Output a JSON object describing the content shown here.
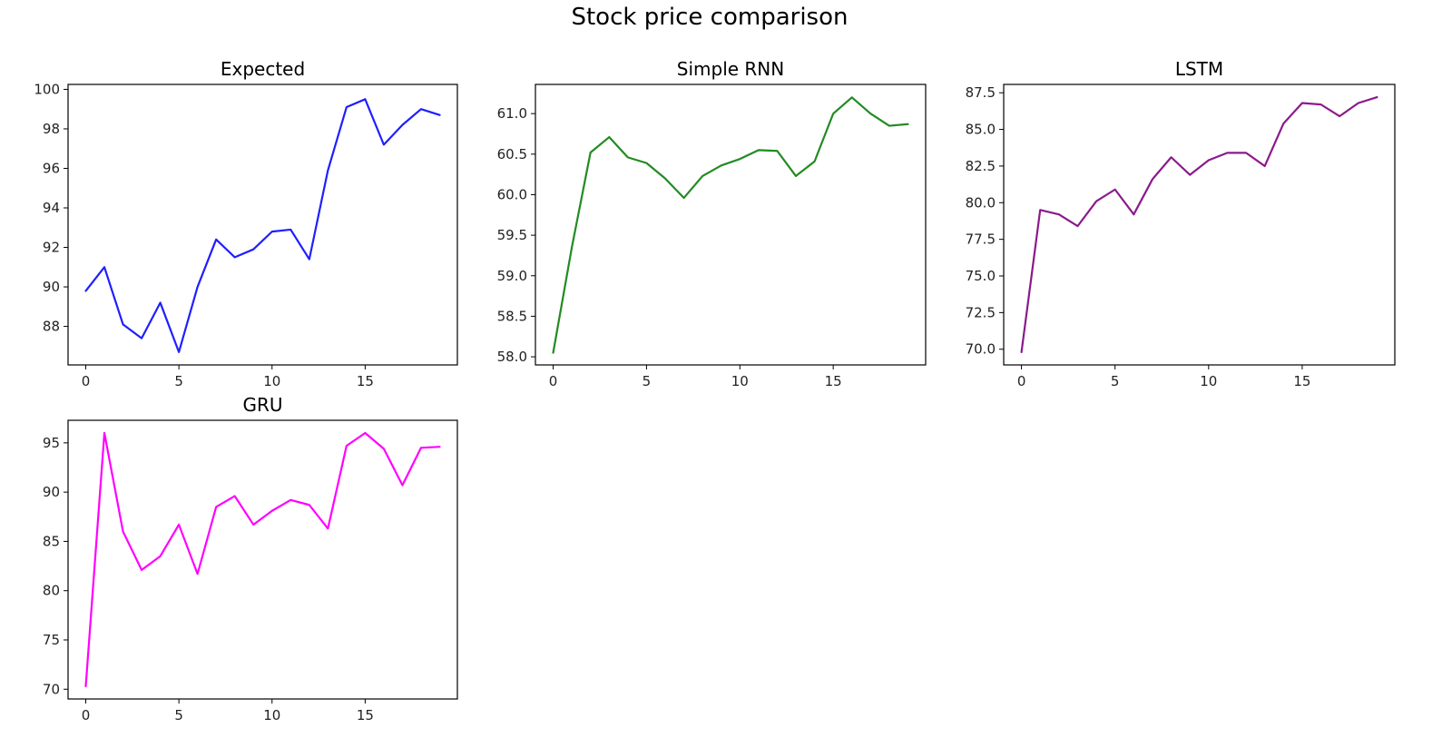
{
  "figure": {
    "title": "Stock price comparison"
  },
  "chart_data": [
    {
      "type": "line",
      "title": "Expected",
      "color": "#1f1fff",
      "x": [
        0,
        1,
        2,
        3,
        4,
        5,
        6,
        7,
        8,
        9,
        10,
        11,
        12,
        13,
        14,
        15,
        16,
        17,
        18,
        19
      ],
      "values": [
        89.8,
        91.0,
        88.1,
        87.4,
        89.2,
        86.7,
        90.0,
        92.4,
        91.5,
        91.9,
        92.8,
        92.9,
        91.4,
        95.9,
        99.1,
        99.5,
        97.2,
        98.2,
        99.0,
        98.7
      ],
      "xlim": [
        -0.95,
        19.95
      ],
      "ylim": [
        86.05,
        100.25
      ],
      "xticks": [
        0,
        5,
        10,
        15
      ],
      "yticks": [
        88,
        90,
        92,
        94,
        96,
        98,
        100
      ],
      "ytick_decimals": 0,
      "grid": false
    },
    {
      "type": "line",
      "title": "Simple RNN",
      "color": "#228b22",
      "x": [
        0,
        1,
        2,
        3,
        4,
        5,
        6,
        7,
        8,
        9,
        10,
        11,
        12,
        13,
        14,
        15,
        16,
        17,
        18,
        19
      ],
      "values": [
        58.05,
        59.35,
        60.52,
        60.71,
        60.46,
        60.39,
        60.2,
        59.96,
        60.23,
        60.36,
        60.44,
        60.55,
        60.54,
        60.23,
        60.41,
        61.0,
        61.2,
        61.0,
        60.85,
        60.87
      ],
      "xlim": [
        -0.95,
        19.95
      ],
      "ylim": [
        57.9,
        61.36
      ],
      "xticks": [
        0,
        5,
        10,
        15
      ],
      "yticks": [
        58.0,
        58.5,
        59.0,
        59.5,
        60.0,
        60.5,
        61.0
      ],
      "ytick_decimals": 1,
      "grid": false
    },
    {
      "type": "line",
      "title": "LSTM",
      "color": "#8b1a8b",
      "x": [
        0,
        1,
        2,
        3,
        4,
        5,
        6,
        7,
        8,
        9,
        10,
        11,
        12,
        13,
        14,
        15,
        16,
        17,
        18,
        19
      ],
      "values": [
        69.8,
        79.5,
        79.2,
        78.4,
        80.1,
        80.9,
        79.2,
        81.6,
        83.1,
        81.9,
        82.9,
        83.4,
        83.4,
        82.5,
        85.4,
        86.8,
        86.7,
        85.9,
        86.8,
        87.2
      ],
      "xlim": [
        -0.95,
        19.95
      ],
      "ylim": [
        68.93,
        88.07
      ],
      "xticks": [
        0,
        5,
        10,
        15
      ],
      "yticks": [
        70.0,
        72.5,
        75.0,
        77.5,
        80.0,
        82.5,
        85.0,
        87.5
      ],
      "ytick_decimals": 1,
      "grid": false
    },
    {
      "type": "line",
      "title": "GRU",
      "color": "#ff00ff",
      "x": [
        0,
        1,
        2,
        3,
        4,
        5,
        6,
        7,
        8,
        9,
        10,
        11,
        12,
        13,
        14,
        15,
        16,
        17,
        18,
        19
      ],
      "values": [
        70.3,
        96.0,
        86.0,
        82.1,
        83.5,
        86.7,
        81.7,
        88.5,
        89.6,
        86.7,
        88.1,
        89.2,
        88.7,
        86.3,
        94.7,
        96.0,
        94.4,
        90.7,
        94.5,
        94.6
      ],
      "xlim": [
        -0.95,
        19.95
      ],
      "ylim": [
        69.01,
        97.29
      ],
      "xticks": [
        0,
        5,
        10,
        15
      ],
      "yticks": [
        70,
        75,
        80,
        85,
        90,
        95
      ],
      "ytick_decimals": 0,
      "grid": false
    }
  ]
}
